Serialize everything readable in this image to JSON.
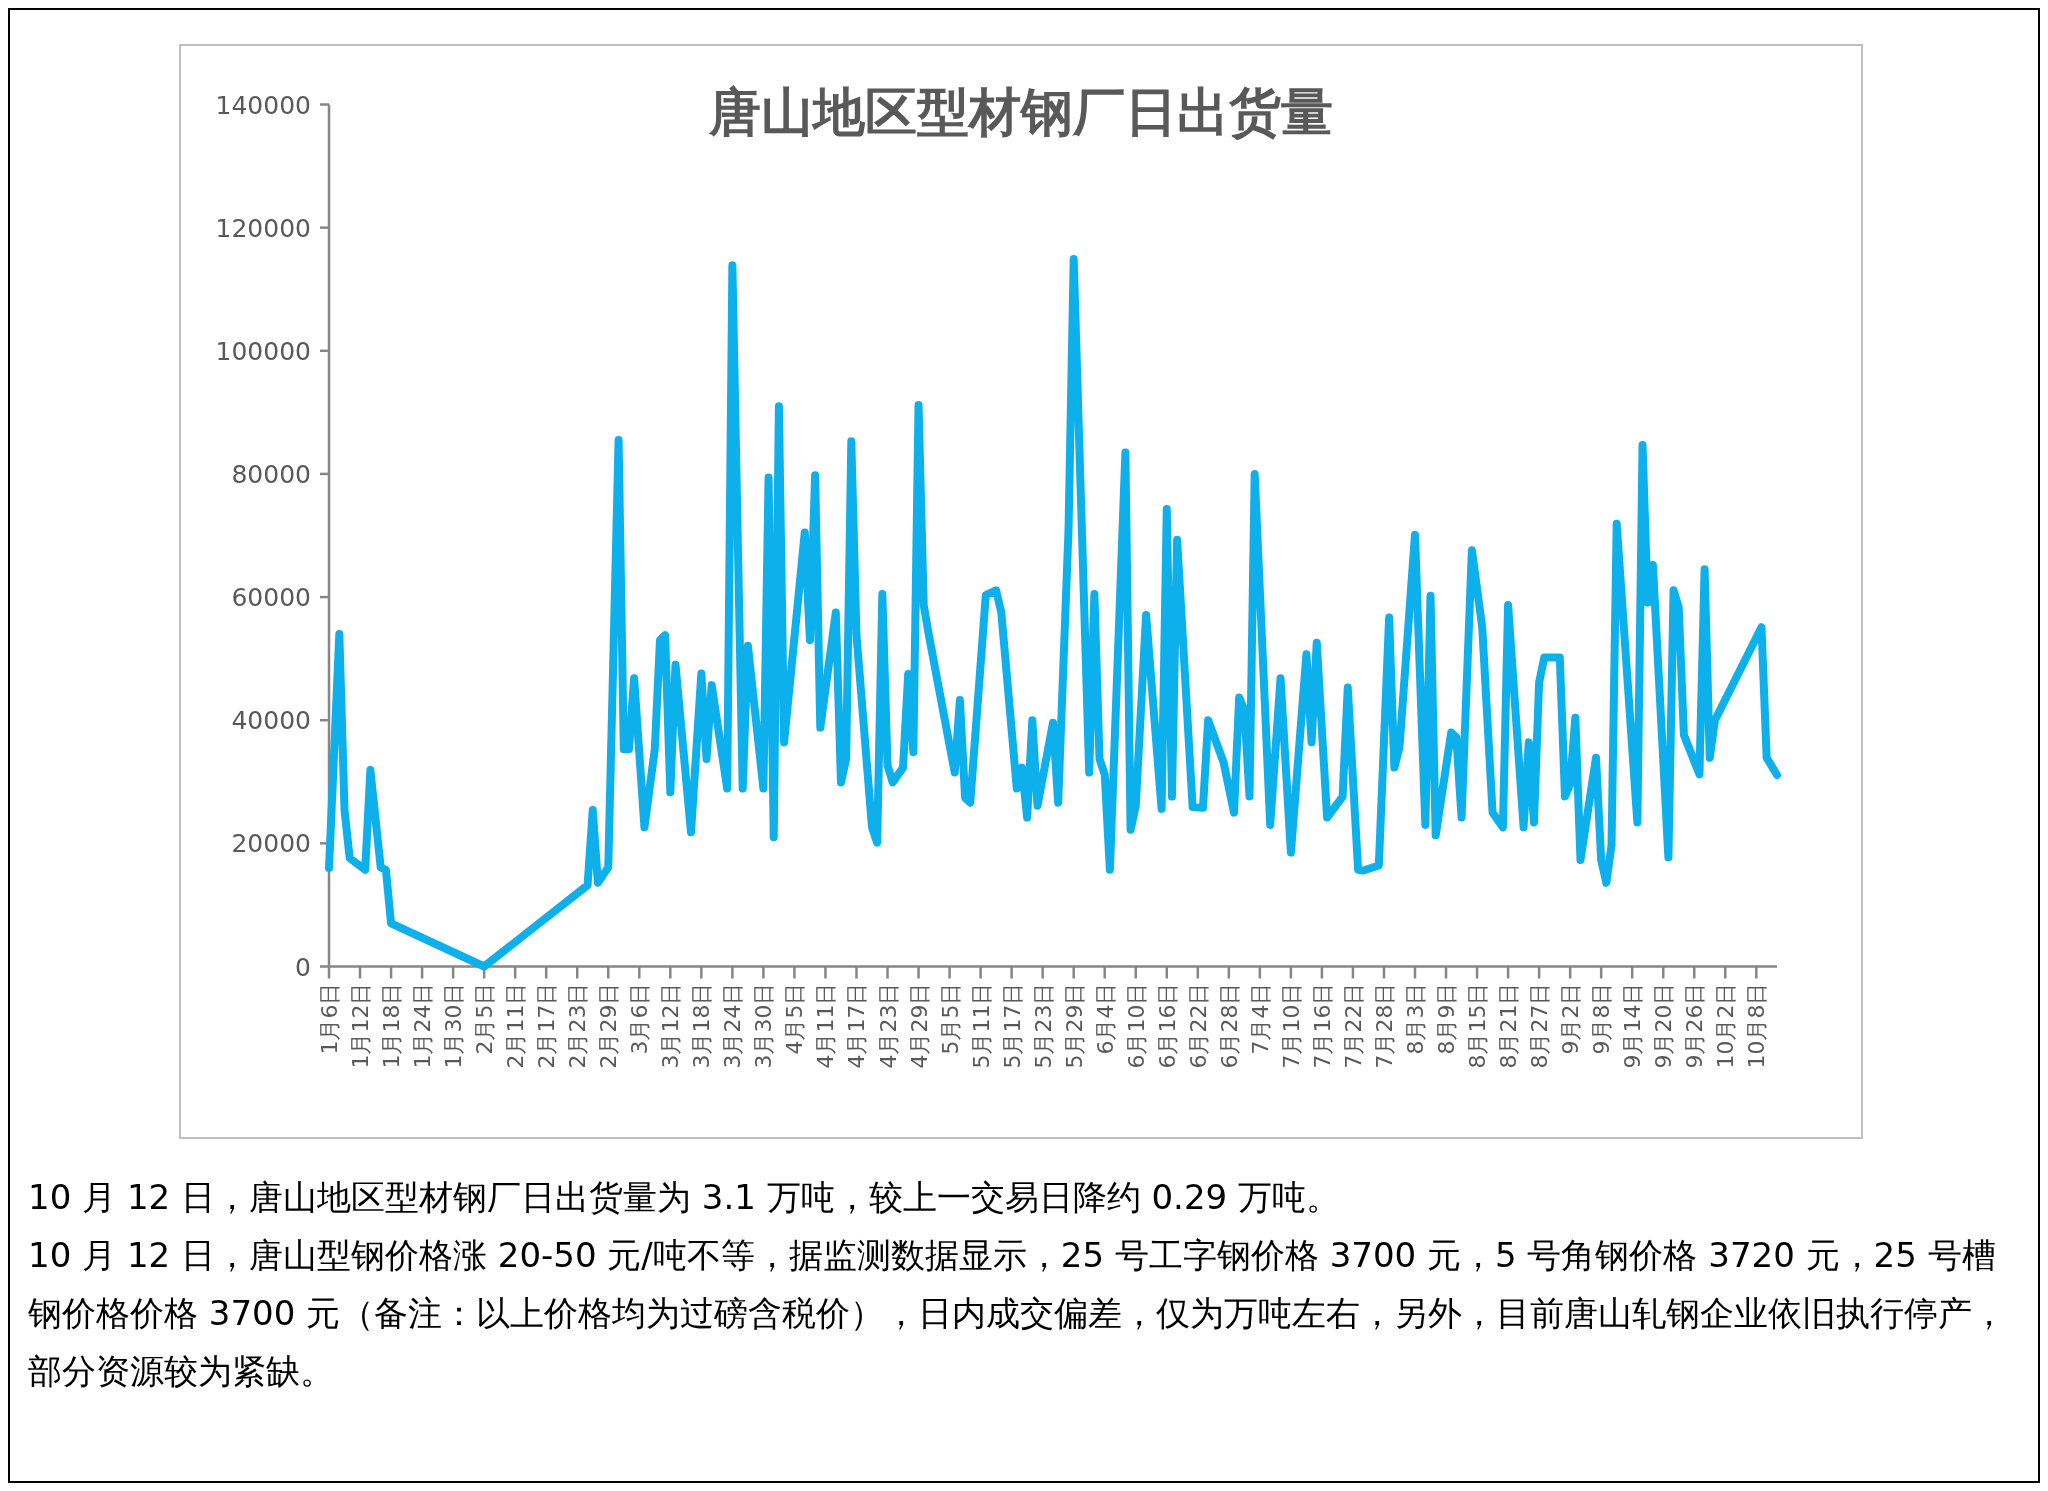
{
  "chart_data": {
    "type": "line",
    "title": "唐山地区型材钢厂日出货量",
    "x": [
      "--01-06",
      "--01-08",
      "--01-09",
      "--01-10",
      "--01-13",
      "--01-14",
      "--01-16",
      "--01-17",
      "--01-18",
      "--02-05",
      "--02-25",
      "--02-26",
      "--02-27",
      "--02-29",
      "--03-02",
      "--03-03",
      "--03-04",
      "--03-05",
      "--03-07",
      "--03-09",
      "--03-10",
      "--03-11",
      "--03-12",
      "--03-13",
      "--03-16",
      "--03-18",
      "--03-19",
      "--03-20",
      "--03-23",
      "--03-24",
      "--03-26",
      "--03-27",
      "--03-30",
      "--03-31",
      "--04-01",
      "--04-02",
      "--04-03",
      "--04-07",
      "--04-08",
      "--04-09",
      "--04-10",
      "--04-13",
      "--04-14",
      "--04-15",
      "--04-16",
      "--04-17",
      "--04-20",
      "--04-21",
      "--04-22",
      "--04-23",
      "--04-24",
      "--04-26",
      "--04-27",
      "--04-28",
      "--04-29",
      "--04-30",
      "--05-01",
      "--05-06",
      "--05-07",
      "--05-08",
      "--05-09",
      "--05-12",
      "--05-14",
      "--05-15",
      "--05-18",
      "--05-19",
      "--05-20",
      "--05-21",
      "--05-22",
      "--05-25",
      "--05-26",
      "--05-28",
      "--05-29",
      "--06-01",
      "--06-02",
      "--06-03",
      "--06-04",
      "--06-05",
      "--06-08",
      "--06-09",
      "--06-10",
      "--06-12",
      "--06-15",
      "--06-16",
      "--06-17",
      "--06-18",
      "--06-21",
      "--06-23",
      "--06-24",
      "--06-27",
      "--06-29",
      "--06-30",
      "--07-01",
      "--07-02",
      "--07-03",
      "--07-06",
      "--07-08",
      "--07-10",
      "--07-13",
      "--07-14",
      "--07-15",
      "--07-17",
      "--07-20",
      "--07-21",
      "--07-23",
      "--07-24",
      "--07-27",
      "--07-29",
      "--07-30",
      "--07-31",
      "--08-03",
      "--08-05",
      "--08-06",
      "--08-07",
      "--08-10",
      "--08-11",
      "--08-12",
      "--08-14",
      "--08-16",
      "--08-18",
      "--08-20",
      "--08-21",
      "--08-24",
      "--08-25",
      "--08-26",
      "--08-27",
      "--08-28",
      "--08-31",
      "--09-01",
      "--09-02",
      "--09-03",
      "--09-04",
      "--09-07",
      "--09-08",
      "--09-09",
      "--09-10",
      "--09-11",
      "--09-15",
      "--09-16",
      "--09-17",
      "--09-18",
      "--09-21",
      "--09-22",
      "--09-23",
      "--09-24",
      "--09-27",
      "--09-28",
      "--09-29",
      "--09-30",
      "--10-09",
      "--10-10",
      "--10-12"
    ],
    "series": [
      {
        "color": "#0eb0ec",
        "values": [
          16000,
          54000,
          25400,
          17600,
          15700,
          31900,
          16100,
          15700,
          7000,
          0,
          13200,
          25400,
          13600,
          16100,
          85500,
          35300,
          35300,
          46800,
          22600,
          35300,
          53000,
          53800,
          28300,
          49000,
          21800,
          47600,
          33700,
          45700,
          28900,
          113900,
          28900,
          52100,
          28900,
          79400,
          21000,
          91000,
          36400,
          70500,
          53000,
          79800,
          38800,
          57500,
          29900,
          33700,
          85300,
          53800,
          22600,
          20100,
          60500,
          32700,
          29900,
          32300,
          47500,
          34800,
          91200,
          58700,
          53800,
          31500,
          43300,
          27400,
          26600,
          60300,
          61100,
          57500,
          28900,
          32300,
          24200,
          40000,
          26100,
          39600,
          26600,
          70900,
          114900,
          31500,
          60500,
          33700,
          31200,
          15700,
          83500,
          22200,
          26100,
          57100,
          25600,
          74300,
          27600,
          69300,
          25900,
          25800,
          40000,
          33100,
          25000,
          43700,
          41700,
          27600,
          80000,
          23000,
          46800,
          18500,
          50700,
          36400,
          52600,
          24200,
          27600,
          45300,
          15700,
          15600,
          16400,
          56700,
          32300,
          35600,
          70100,
          23000,
          60200,
          21300,
          38000,
          37200,
          24200,
          67600,
          55100,
          25000,
          22600,
          58700,
          22600,
          36400,
          23400,
          46100,
          50200,
          50200,
          27600,
          29600,
          40400,
          17300,
          33900,
          17300,
          13600,
          19700,
          71900,
          23400,
          84700,
          59100,
          65200,
          17700,
          61100,
          58300,
          37600,
          31200,
          64500,
          33900,
          40000,
          55100,
          33900,
          31100
        ]
      }
    ],
    "xlim": [
      "--01-06",
      "--10-12"
    ],
    "xticks": [
      {
        "value": "--01-06",
        "label": "1月6日"
      },
      {
        "value": "--01-12",
        "label": "1月12日"
      },
      {
        "value": "--01-18",
        "label": "1月18日"
      },
      {
        "value": "--01-24",
        "label": "1月24日"
      },
      {
        "value": "--01-30",
        "label": "1月30日"
      },
      {
        "value": "--02-05",
        "label": "2月5日"
      },
      {
        "value": "--02-11",
        "label": "2月11日"
      },
      {
        "value": "--02-17",
        "label": "2月17日"
      },
      {
        "value": "--02-23",
        "label": "2月23日"
      },
      {
        "value": "--02-29",
        "label": "2月29日"
      },
      {
        "value": "--03-06",
        "label": "3月6日"
      },
      {
        "value": "--03-12",
        "label": "3月12日"
      },
      {
        "value": "--03-18",
        "label": "3月18日"
      },
      {
        "value": "--03-24",
        "label": "3月24日"
      },
      {
        "value": "--03-30",
        "label": "3月30日"
      },
      {
        "value": "--04-05",
        "label": "4月5日"
      },
      {
        "value": "--04-11",
        "label": "4月11日"
      },
      {
        "value": "--04-17",
        "label": "4月17日"
      },
      {
        "value": "--04-23",
        "label": "4月23日"
      },
      {
        "value": "--04-29",
        "label": "4月29日"
      },
      {
        "value": "--05-05",
        "label": "5月5日"
      },
      {
        "value": "--05-11",
        "label": "5月11日"
      },
      {
        "value": "--05-17",
        "label": "5月17日"
      },
      {
        "value": "--05-23",
        "label": "5月23日"
      },
      {
        "value": "--05-29",
        "label": "5月29日"
      },
      {
        "value": "--06-04",
        "label": "6月4日"
      },
      {
        "value": "--06-10",
        "label": "6月10日"
      },
      {
        "value": "--06-16",
        "label": "6月16日"
      },
      {
        "value": "--06-22",
        "label": "6月22日"
      },
      {
        "value": "--06-28",
        "label": "6月28日"
      },
      {
        "value": "--07-04",
        "label": "7月4日"
      },
      {
        "value": "--07-10",
        "label": "7月10日"
      },
      {
        "value": "--07-16",
        "label": "7月16日"
      },
      {
        "value": "--07-22",
        "label": "7月22日"
      },
      {
        "value": "--07-28",
        "label": "7月28日"
      },
      {
        "value": "--08-03",
        "label": "8月3日"
      },
      {
        "value": "--08-09",
        "label": "8月9日"
      },
      {
        "value": "--08-15",
        "label": "8月15日"
      },
      {
        "value": "--08-21",
        "label": "8月21日"
      },
      {
        "value": "--08-27",
        "label": "8月27日"
      },
      {
        "value": "--09-02",
        "label": "9月2日"
      },
      {
        "value": "--09-08",
        "label": "9月8日"
      },
      {
        "value": "--09-14",
        "label": "9月14日"
      },
      {
        "value": "--09-20",
        "label": "9月20日"
      },
      {
        "value": "--09-26",
        "label": "9月26日"
      },
      {
        "value": "--10-02",
        "label": "10月2日"
      },
      {
        "value": "--10-08",
        "label": "10月8日"
      }
    ],
    "ylim": [
      0,
      140000
    ],
    "yticks": [
      0,
      20000,
      40000,
      60000,
      80000,
      100000,
      120000,
      140000
    ],
    "grid": false,
    "marker": "none",
    "line_style": "solid",
    "annotations": [
      "10 月 12 日，唐山地区型材钢厂日出货量为 3.1 万吨，较上一交易日降约 0.29 万吨。",
      "10 月 12 日，唐山型钢价格涨 20-50 元/吨不等，据监测数据显示，25 号工字钢价格 3700 元，5 号角钢价格 3720 元，25 号槽钢价格价格 3700 元（备注：以上价格均为过磅含税价），日内成交偏差，仅为万吨左右，另外，目前唐山轧钢企业依旧执行停产，部分资源较为紧缺。"
    ]
  }
}
